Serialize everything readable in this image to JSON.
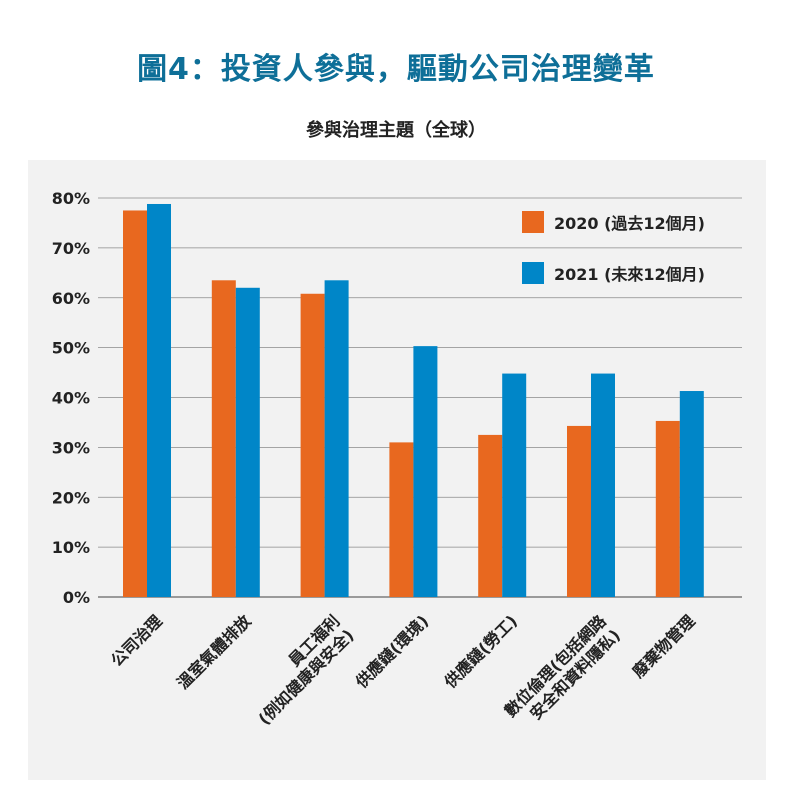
{
  "chart_data": {
    "type": "bar",
    "title": "圖4：投資人參與，驅動公司治理變革",
    "subtitle": "參與治理主題（全球）",
    "categories": [
      [
        "公司治理"
      ],
      [
        "溫室氣體排放"
      ],
      [
        "員工福利",
        "(例如健康與安全)"
      ],
      [
        "供應鏈(環境)"
      ],
      [
        "供應鏈(勞工)"
      ],
      [
        "數位倫理(包括網路",
        "安全和資料隱私)"
      ],
      [
        "廢棄物管理"
      ]
    ],
    "series": [
      {
        "name": "2020 (過去12個月)",
        "color": "#e8681f",
        "values": [
          77.5,
          63.5,
          60.8,
          31.0,
          32.5,
          34.3,
          35.3
        ]
      },
      {
        "name": "2021 (未來12個月)",
        "color": "#0086c8",
        "values": [
          78.8,
          62.0,
          63.5,
          50.3,
          44.8,
          44.8,
          41.3
        ]
      }
    ],
    "ylim": [
      0,
      80
    ],
    "yticks": [
      "0%",
      "10%",
      "20%",
      "30%",
      "40%",
      "50%",
      "60%",
      "70%",
      "80%"
    ],
    "grid": true,
    "legend_position": "top-right"
  }
}
